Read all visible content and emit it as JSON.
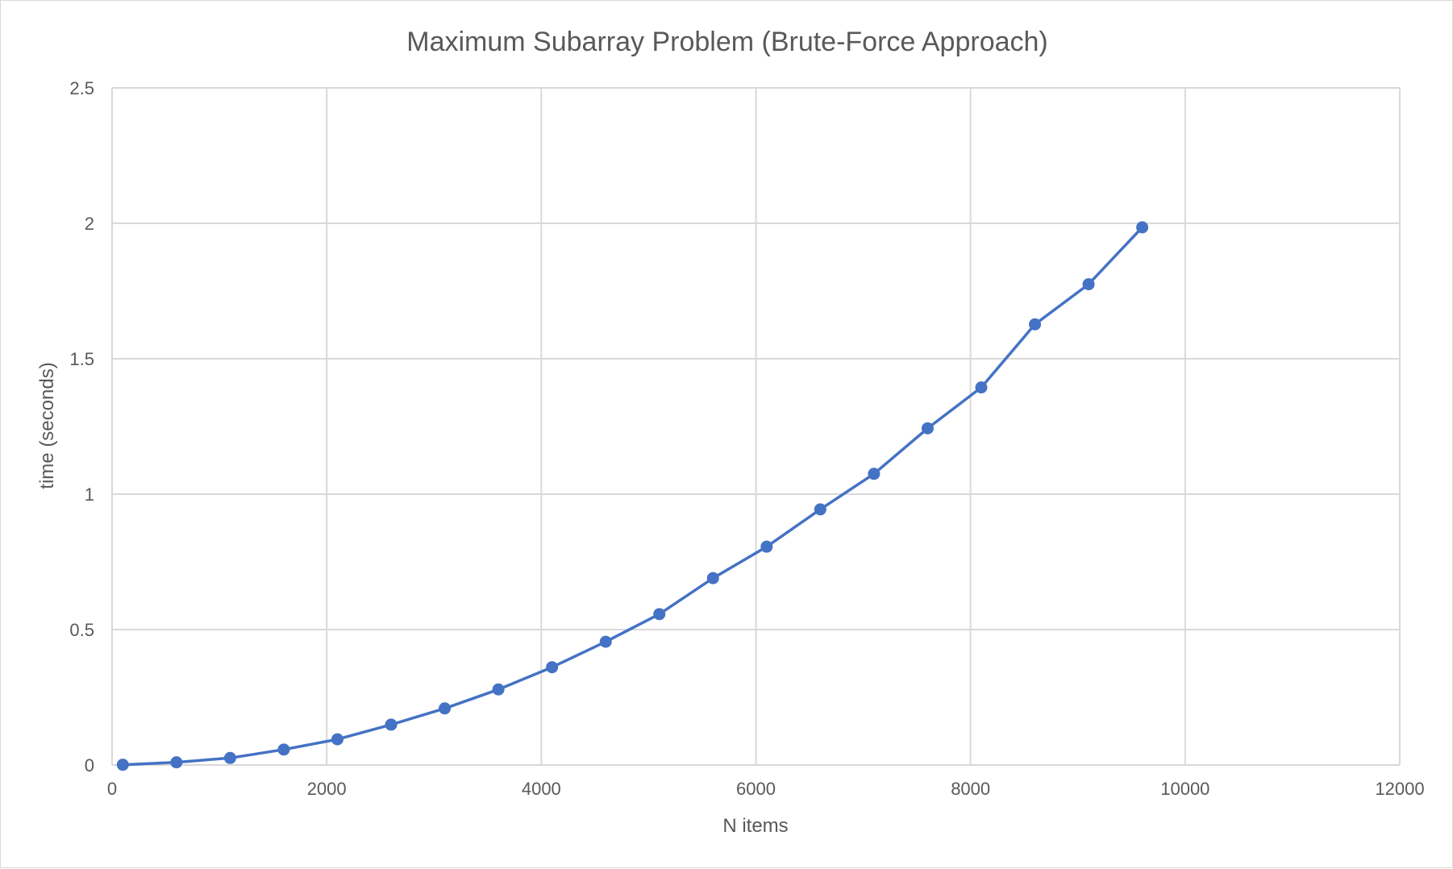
{
  "chart_data": {
    "type": "line",
    "title": "Maximum Subarray Problem (Brute-Force Approach)",
    "xlabel": "N items",
    "ylabel": "time (seconds)",
    "xlim": [
      0,
      12000
    ],
    "ylim": [
      0,
      2.5
    ],
    "x_ticks": [
      "0",
      "2000",
      "4000",
      "6000",
      "8000",
      "10000",
      "12000"
    ],
    "y_ticks": [
      "0",
      "0.5",
      "1",
      "1.5",
      "2",
      "2.5"
    ],
    "grid": true,
    "legend": "none",
    "line_color": "#4472C4",
    "series": [
      {
        "x": [
          100,
          600,
          1100,
          1600,
          2100,
          2600,
          3100,
          3600,
          4100,
          4600,
          5100,
          5600,
          6100,
          6600,
          7100,
          7600,
          8100,
          8600,
          9100,
          9600
        ],
        "y": [
          0.001,
          0.01,
          0.026,
          0.057,
          0.095,
          0.149,
          0.209,
          0.279,
          0.361,
          0.455,
          0.557,
          0.69,
          0.806,
          0.944,
          1.075,
          1.243,
          1.394,
          1.627,
          1.775,
          1.985
        ]
      }
    ]
  }
}
